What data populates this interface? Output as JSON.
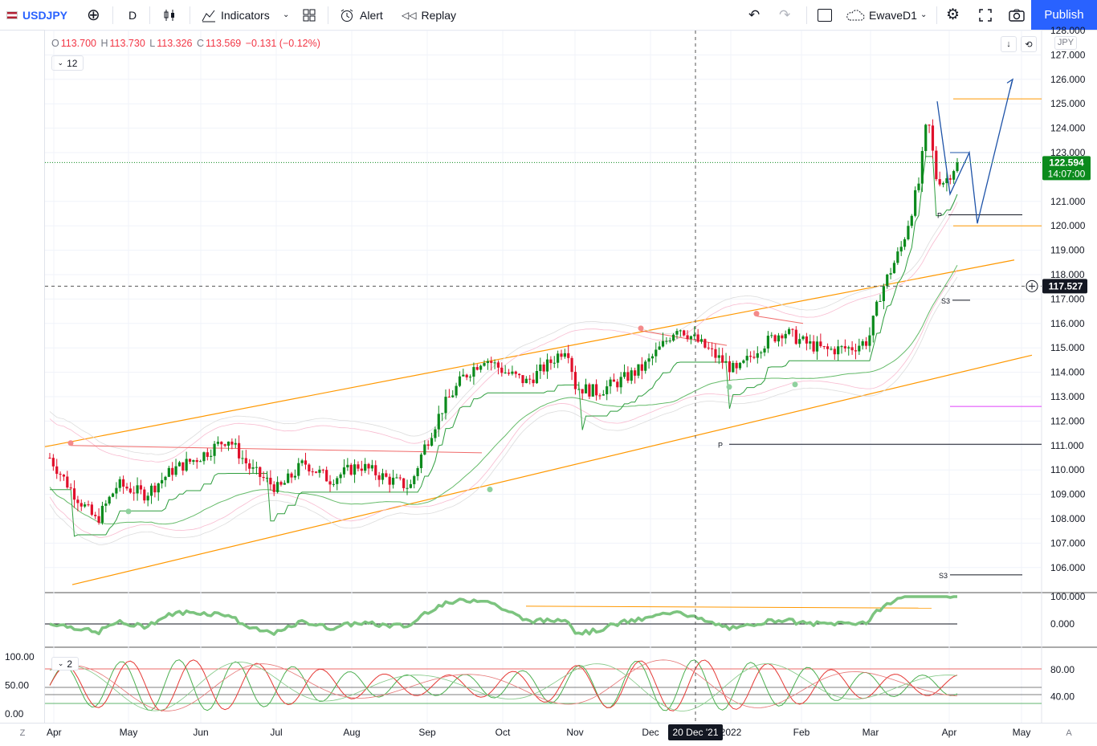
{
  "toolbar": {
    "symbol": "USDJPY",
    "interval": "D",
    "indicators_label": "Indicators",
    "alert_label": "Alert",
    "replay_label": "Replay",
    "layout_name": "EwaveD1",
    "publish_label": "Publish"
  },
  "legend": {
    "o_label": "O",
    "o": "113.700",
    "h_label": "H",
    "h": "113.730",
    "l_label": "L",
    "l": "113.326",
    "c_label": "C",
    "c": "113.569",
    "change": "−0.131 (−0.12%)",
    "period": "12",
    "indicator_period": "2",
    "currency": "JPY"
  },
  "price_scale": {
    "last_price": "122.594",
    "countdown": "14:07:00",
    "crosshair_price": "117.527",
    "ticks": [
      "128.000",
      "127.000",
      "126.000",
      "125.000",
      "124.000",
      "123.000",
      "121.000",
      "120.000",
      "119.000",
      "118.000",
      "117.000",
      "116.000",
      "115.000",
      "114.000",
      "113.000",
      "112.000",
      "111.000",
      "110.000",
      "109.000",
      "108.000",
      "107.000",
      "106.000"
    ]
  },
  "indicator1": {
    "ticks": [
      "100.000",
      "0.000"
    ]
  },
  "indicator2": {
    "left_ticks": [
      "100.00",
      "50.00",
      "0.00"
    ],
    "right_ticks": [
      "80.00",
      "40.00"
    ]
  },
  "time_axis": {
    "labels": [
      "Apr",
      "May",
      "Jun",
      "Jul",
      "Aug",
      "Sep",
      "Oct",
      "Nov",
      "Dec",
      "2022",
      "Feb",
      "Mar",
      "Apr",
      "May"
    ],
    "crosshair_date": "20 Dec '21",
    "left_btn": "Z",
    "right_btn": "A"
  },
  "pivots": {
    "p_label": "P",
    "s3_label": "S3"
  },
  "colors": {
    "up": "#089981",
    "down": "#f23645",
    "channel": "#ff9800",
    "accent": "#2962ff",
    "green_line": "#4caf50"
  },
  "chart_data": {
    "type": "candlestick",
    "symbol": "USDJPY",
    "ylim": [
      105.3,
      128.0
    ],
    "x": [
      "Apr",
      "May",
      "Jun",
      "Jul",
      "Aug",
      "Sep",
      "Oct",
      "Nov",
      "Dec",
      "Jan",
      "Feb",
      "Mar",
      "Apr"
    ],
    "close_approx": [
      109.8,
      108.7,
      109.6,
      110.6,
      109.7,
      110.0,
      111.3,
      113.9,
      114.4,
      115.1,
      115.0,
      115.2,
      122.6
    ],
    "horizontal_levels": [
      {
        "label": "P",
        "value": 120.45
      },
      {
        "label": "S3",
        "value": 116.95
      },
      {
        "label": "P",
        "value": 111.05
      },
      {
        "label": "S3",
        "value": 105.7
      },
      {
        "label": "",
        "value": 125.2
      },
      {
        "label": "",
        "value": 120.0
      },
      {
        "label": "",
        "value": 112.6
      }
    ]
  }
}
